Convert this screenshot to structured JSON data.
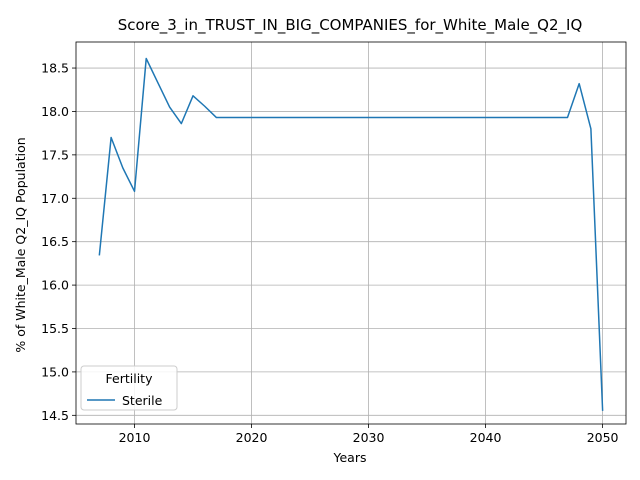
{
  "chart_data": {
    "type": "line",
    "title": "Score_3_in_TRUST_IN_BIG_COMPANIES_for_White_Male_Q2_IQ",
    "xlabel": "Years",
    "ylabel": "% of White_Male Q2_IQ Population",
    "xlim": [
      2005,
      2052
    ],
    "ylim": [
      14.4,
      18.8
    ],
    "xticks": [
      2010,
      2020,
      2030,
      2040,
      2050
    ],
    "yticks": [
      14.5,
      15.0,
      15.5,
      16.0,
      16.5,
      17.0,
      17.5,
      18.0,
      18.5
    ],
    "grid": true,
    "legend": {
      "title": "Fertility",
      "position": "lower-left"
    },
    "series": [
      {
        "name": "Sterile",
        "color": "#1f77b4",
        "x": [
          2007,
          2008,
          2009,
          2010,
          2011,
          2012,
          2013,
          2014,
          2015,
          2016,
          2017,
          2020,
          2030,
          2040,
          2046,
          2047,
          2048,
          2049,
          2050
        ],
        "y": [
          16.35,
          17.7,
          17.35,
          17.08,
          18.61,
          18.33,
          18.05,
          17.86,
          18.18,
          18.06,
          17.93,
          17.93,
          17.93,
          17.93,
          17.93,
          17.93,
          18.32,
          17.8,
          14.56
        ]
      }
    ]
  }
}
